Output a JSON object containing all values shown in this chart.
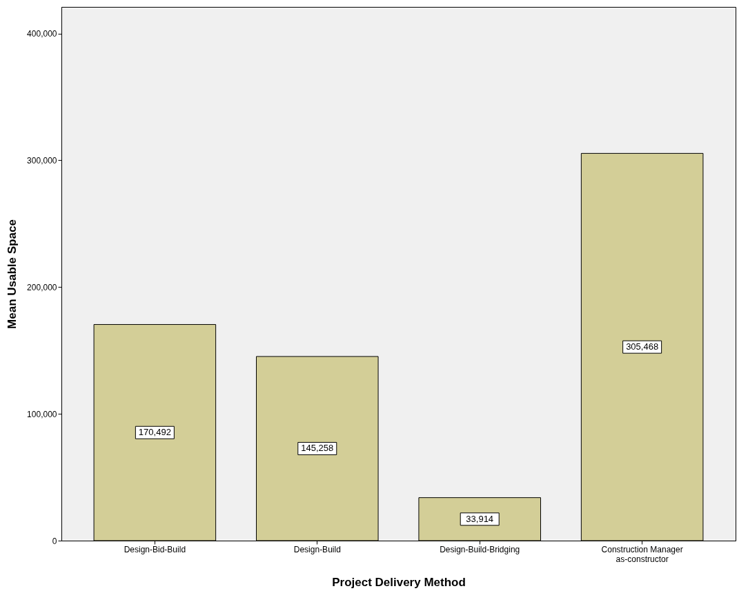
{
  "chart_data": {
    "type": "bar",
    "xlabel": "Project Delivery Method",
    "ylabel": "Mean Usable Space",
    "categories": [
      "Design-Bid-Build",
      "Design-Build",
      "Design-Build-Bridging",
      "Construction Manager\nas-constructor"
    ],
    "values": [
      170492,
      145258,
      33914,
      305468
    ],
    "color": "#d3ce97",
    "value_labels": [
      "170,492",
      "145,258",
      "33,914",
      "305,468"
    ],
    "ylim": [
      0,
      421000
    ],
    "yticks": [
      0,
      {
        "value": 100000,
        "label": "100,000"
      },
      {
        "value": 200000,
        "label": "200,000"
      },
      {
        "value": 300000,
        "label": "300,000"
      },
      {
        "value": 400000,
        "label": "400,000"
      }
    ],
    "grid": false
  }
}
